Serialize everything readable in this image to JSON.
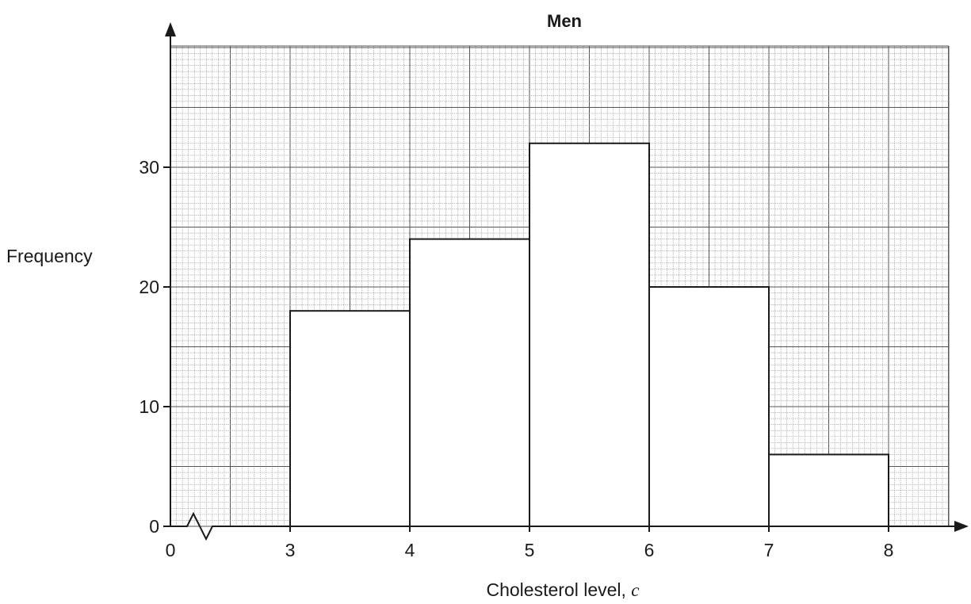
{
  "chart_data": {
    "type": "bar",
    "subtype": "histogram",
    "title": "Men",
    "xlabel": "Cholesterol level,",
    "xlabel_variable": "c",
    "ylabel": "Frequency",
    "bins": [
      {
        "from": 3,
        "to": 4,
        "value": 18
      },
      {
        "from": 4,
        "to": 5,
        "value": 24
      },
      {
        "from": 5,
        "to": 6,
        "value": 32
      },
      {
        "from": 6,
        "to": 7,
        "value": 20
      },
      {
        "from": 7,
        "to": 8,
        "value": 6
      }
    ],
    "x_ticks": [
      "0",
      "3",
      "4",
      "5",
      "6",
      "7",
      "8"
    ],
    "y_ticks": [
      "0",
      "10",
      "20",
      "30"
    ],
    "xlim": [
      0,
      8.5
    ],
    "ylim": [
      0,
      40
    ],
    "x_axis_break": true,
    "grid": "on (graph paper)",
    "colors": {
      "grid_fine": "#9a9a9a",
      "grid_major": "#555555",
      "axis": "#1a1a1a",
      "bar_fill": "#ffffff",
      "bar_stroke": "#1a1a1a"
    }
  }
}
